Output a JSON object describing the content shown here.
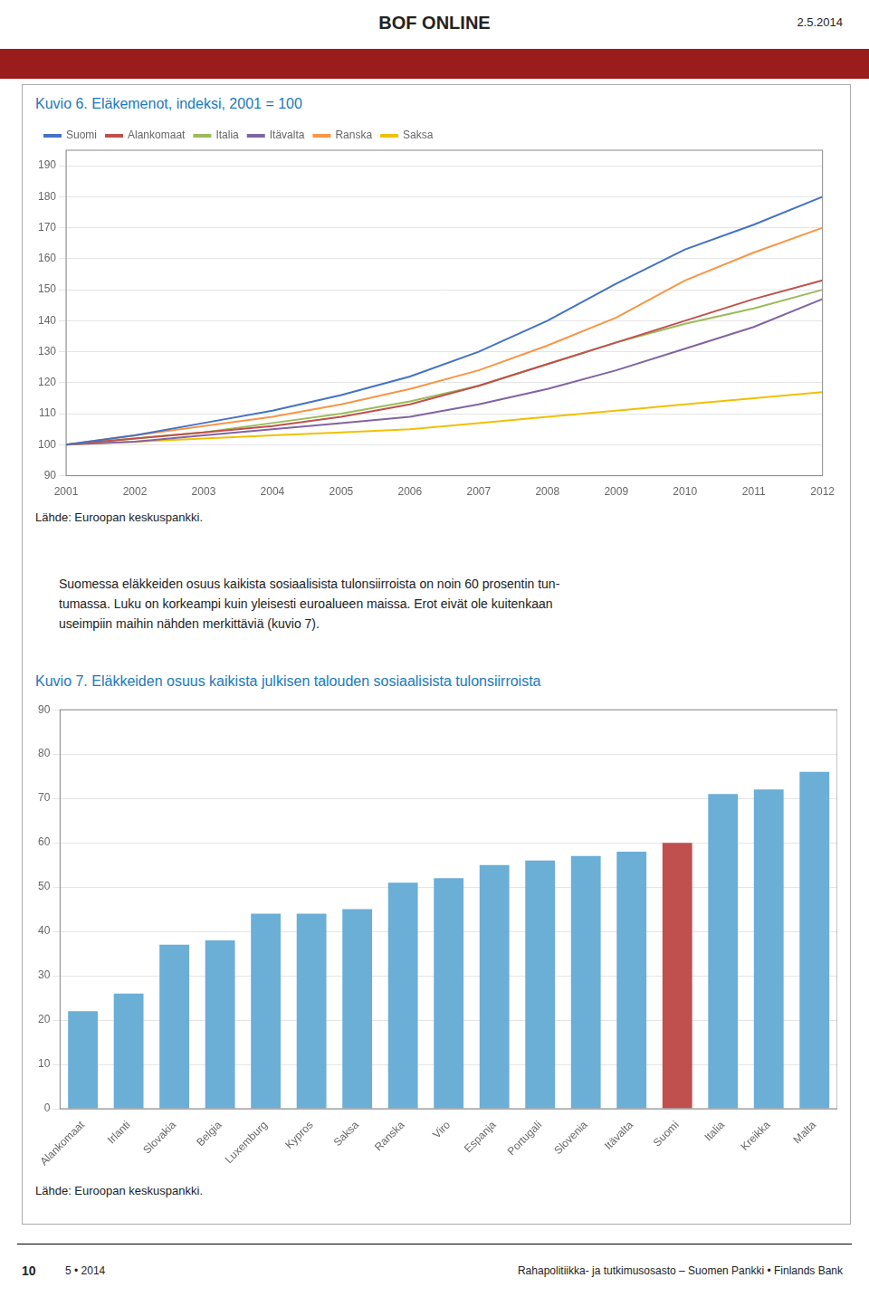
{
  "title": "BOF ONLINE",
  "subtitle": "2.5.2014",
  "text": [
    "Suomessa eläkkeiden osuus kaikista sosiaalisista tulonsiirroista on noin 60 prosentin tun-",
    "tumassa. Luku on korkeampi kuin yleisesti euroalueen maissa. Erot eivät ole kuitenkaan",
    "useimpiin maihin nähden merkittäviä (kuvio 7)."
  ],
  "footer": [
    "10",
    "5 • 2014",
    "Rahapolitiikka- ja tutkimusosasto – Suomen Pankki • Finlands Bank"
  ],
  "chart_data": [
    {
      "type": "line",
      "title": "Kuvio 6. Eläkemenot, indeksi, 2001 = 100",
      "annotations": [
        "Lähde: Euroopan keskuspankki."
      ],
      "x": [
        2001,
        2002,
        2003,
        2004,
        2005,
        2006,
        2007,
        2008,
        2009,
        2010,
        2011,
        2012
      ],
      "series": [
        {
          "name": "Suomi",
          "color": "#4472c4",
          "values": [
            100,
            103,
            107,
            111,
            116,
            122,
            130,
            140,
            152,
            163,
            171,
            180
          ]
        },
        {
          "name": "Alankomaat",
          "color": "#c0504d",
          "values": [
            100,
            102,
            104,
            106,
            109,
            113,
            119,
            126,
            133,
            140,
            147,
            153
          ]
        },
        {
          "name": "Italia",
          "color": "#9bbb59",
          "values": [
            100,
            102,
            104,
            107,
            110,
            114,
            119,
            126,
            133,
            139,
            144,
            150
          ]
        },
        {
          "name": "Itävalta",
          "color": "#8064a2",
          "values": [
            100,
            101,
            103,
            105,
            107,
            109,
            113,
            118,
            124,
            131,
            138,
            147
          ]
        },
        {
          "name": "Ranska",
          "color": "#f79646",
          "values": [
            100,
            103,
            106,
            109,
            113,
            118,
            124,
            132,
            141,
            153,
            162,
            170
          ]
        },
        {
          "name": "Saksa",
          "color": "#f0c000",
          "values": [
            100,
            101,
            102,
            103,
            104,
            105,
            107,
            109,
            111,
            113,
            115,
            117
          ]
        }
      ],
      "xlim": [
        2001,
        2012
      ],
      "xticks": [
        2001,
        2002,
        2003,
        2004,
        2005,
        2006,
        2007,
        2008,
        2009,
        2010,
        2011,
        2012
      ],
      "ylim": [
        90,
        195
      ],
      "yticks": [
        90,
        100,
        110,
        120,
        130,
        140,
        150,
        160,
        170,
        180,
        190
      ],
      "grid": true,
      "legend": "top"
    },
    {
      "type": "bar",
      "title": "Kuvio 7. Eläkkeiden osuus kaikista julkisen talouden sosiaalisista tulonsiirroista",
      "annotations": [
        "Lähde: Euroopan keskuspankki."
      ],
      "categories": [
        "Alankomaat",
        "Irlanti",
        "Slovakia",
        "Belgia",
        "Luxemburg",
        "Kypros",
        "Saksa",
        "Ranska",
        "Viro",
        "Espanja",
        "Portugali",
        "Slovenia",
        "Itävalta",
        "Suomi",
        "Italia",
        "Kreikka",
        "Malta"
      ],
      "values": [
        22,
        26,
        37,
        38,
        44,
        44,
        45,
        51,
        52,
        55,
        56,
        57,
        58,
        60,
        71,
        72,
        76
      ],
      "colors": [
        "#6baed6",
        "#6baed6",
        "#6baed6",
        "#6baed6",
        "#6baed6",
        "#6baed6",
        "#6baed6",
        "#6baed6",
        "#6baed6",
        "#6baed6",
        "#6baed6",
        "#6baed6",
        "#6baed6",
        "#c0504d",
        "#6baed6",
        "#6baed6",
        "#6baed6"
      ],
      "ylim": [
        0,
        90
      ],
      "yticks": [
        0,
        10,
        20,
        30,
        40,
        50,
        60,
        70,
        80,
        90
      ],
      "grid": true
    }
  ]
}
